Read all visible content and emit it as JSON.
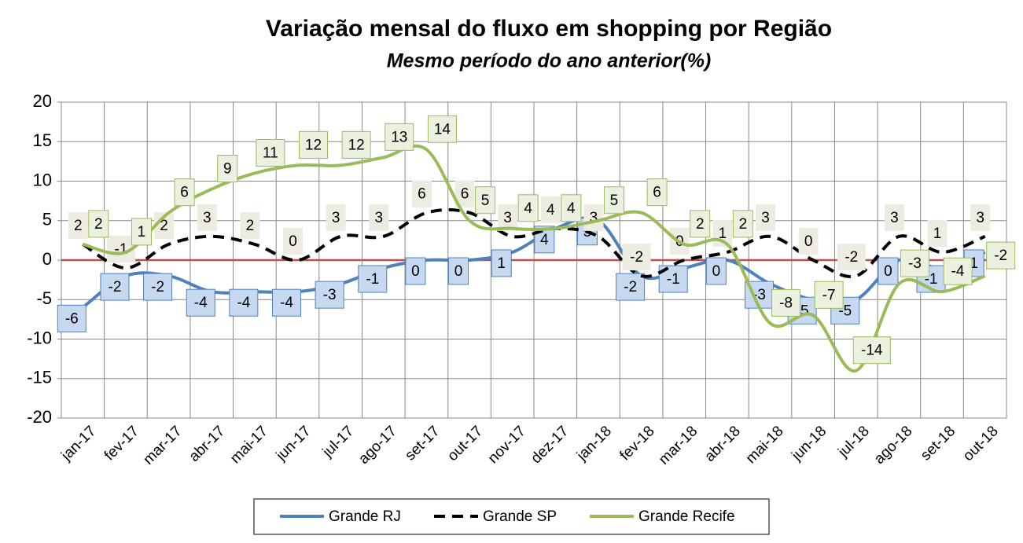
{
  "chart_data": {
    "type": "line",
    "title": "Variação mensal do fluxo em shopping por Região",
    "subtitle": "Mesmo período do ano anterior(%)",
    "categories": [
      "jan-17",
      "fev-17",
      "mar-17",
      "abr-17",
      "mai-17",
      "jun-17",
      "jul-17",
      "ago-17",
      "set-17",
      "out-17",
      "nov-17",
      "dez-17",
      "jan-18",
      "fev-18",
      "mar-18",
      "abr-18",
      "mai-18",
      "jun-18",
      "jul-18",
      "ago-18",
      "set-18",
      "out-18"
    ],
    "series": [
      {
        "name": "Grande RJ",
        "color": "#4f81bd",
        "dash": false,
        "values": [
          -6,
          -2,
          -2,
          -4,
          -4,
          -4,
          -3,
          -1,
          0,
          0,
          1,
          4,
          5,
          -2,
          -1,
          0,
          -3,
          -5,
          -5,
          0,
          -1,
          1
        ]
      },
      {
        "name": "Grande SP",
        "color": "#000000",
        "dash": true,
        "values": [
          2,
          -1,
          2,
          3,
          2,
          0,
          3,
          3,
          6,
          6,
          3,
          4,
          3,
          -2,
          0,
          1,
          3,
          0,
          -2,
          3,
          1,
          3
        ]
      },
      {
        "name": "Grande Recife",
        "color": "#9bbb59",
        "dash": false,
        "values": [
          2,
          1,
          6,
          9,
          11,
          12,
          12,
          13,
          14,
          5,
          4,
          4,
          5,
          6,
          2,
          2,
          -8,
          -7,
          -14,
          -3,
          -4,
          -2
        ]
      }
    ],
    "ylim": [
      -20,
      20
    ],
    "yticks": [
      -20,
      -15,
      -10,
      -5,
      0,
      5,
      10,
      15,
      20
    ],
    "grid": true,
    "zero_line_color": "#c0504d",
    "legend": "bottom"
  }
}
